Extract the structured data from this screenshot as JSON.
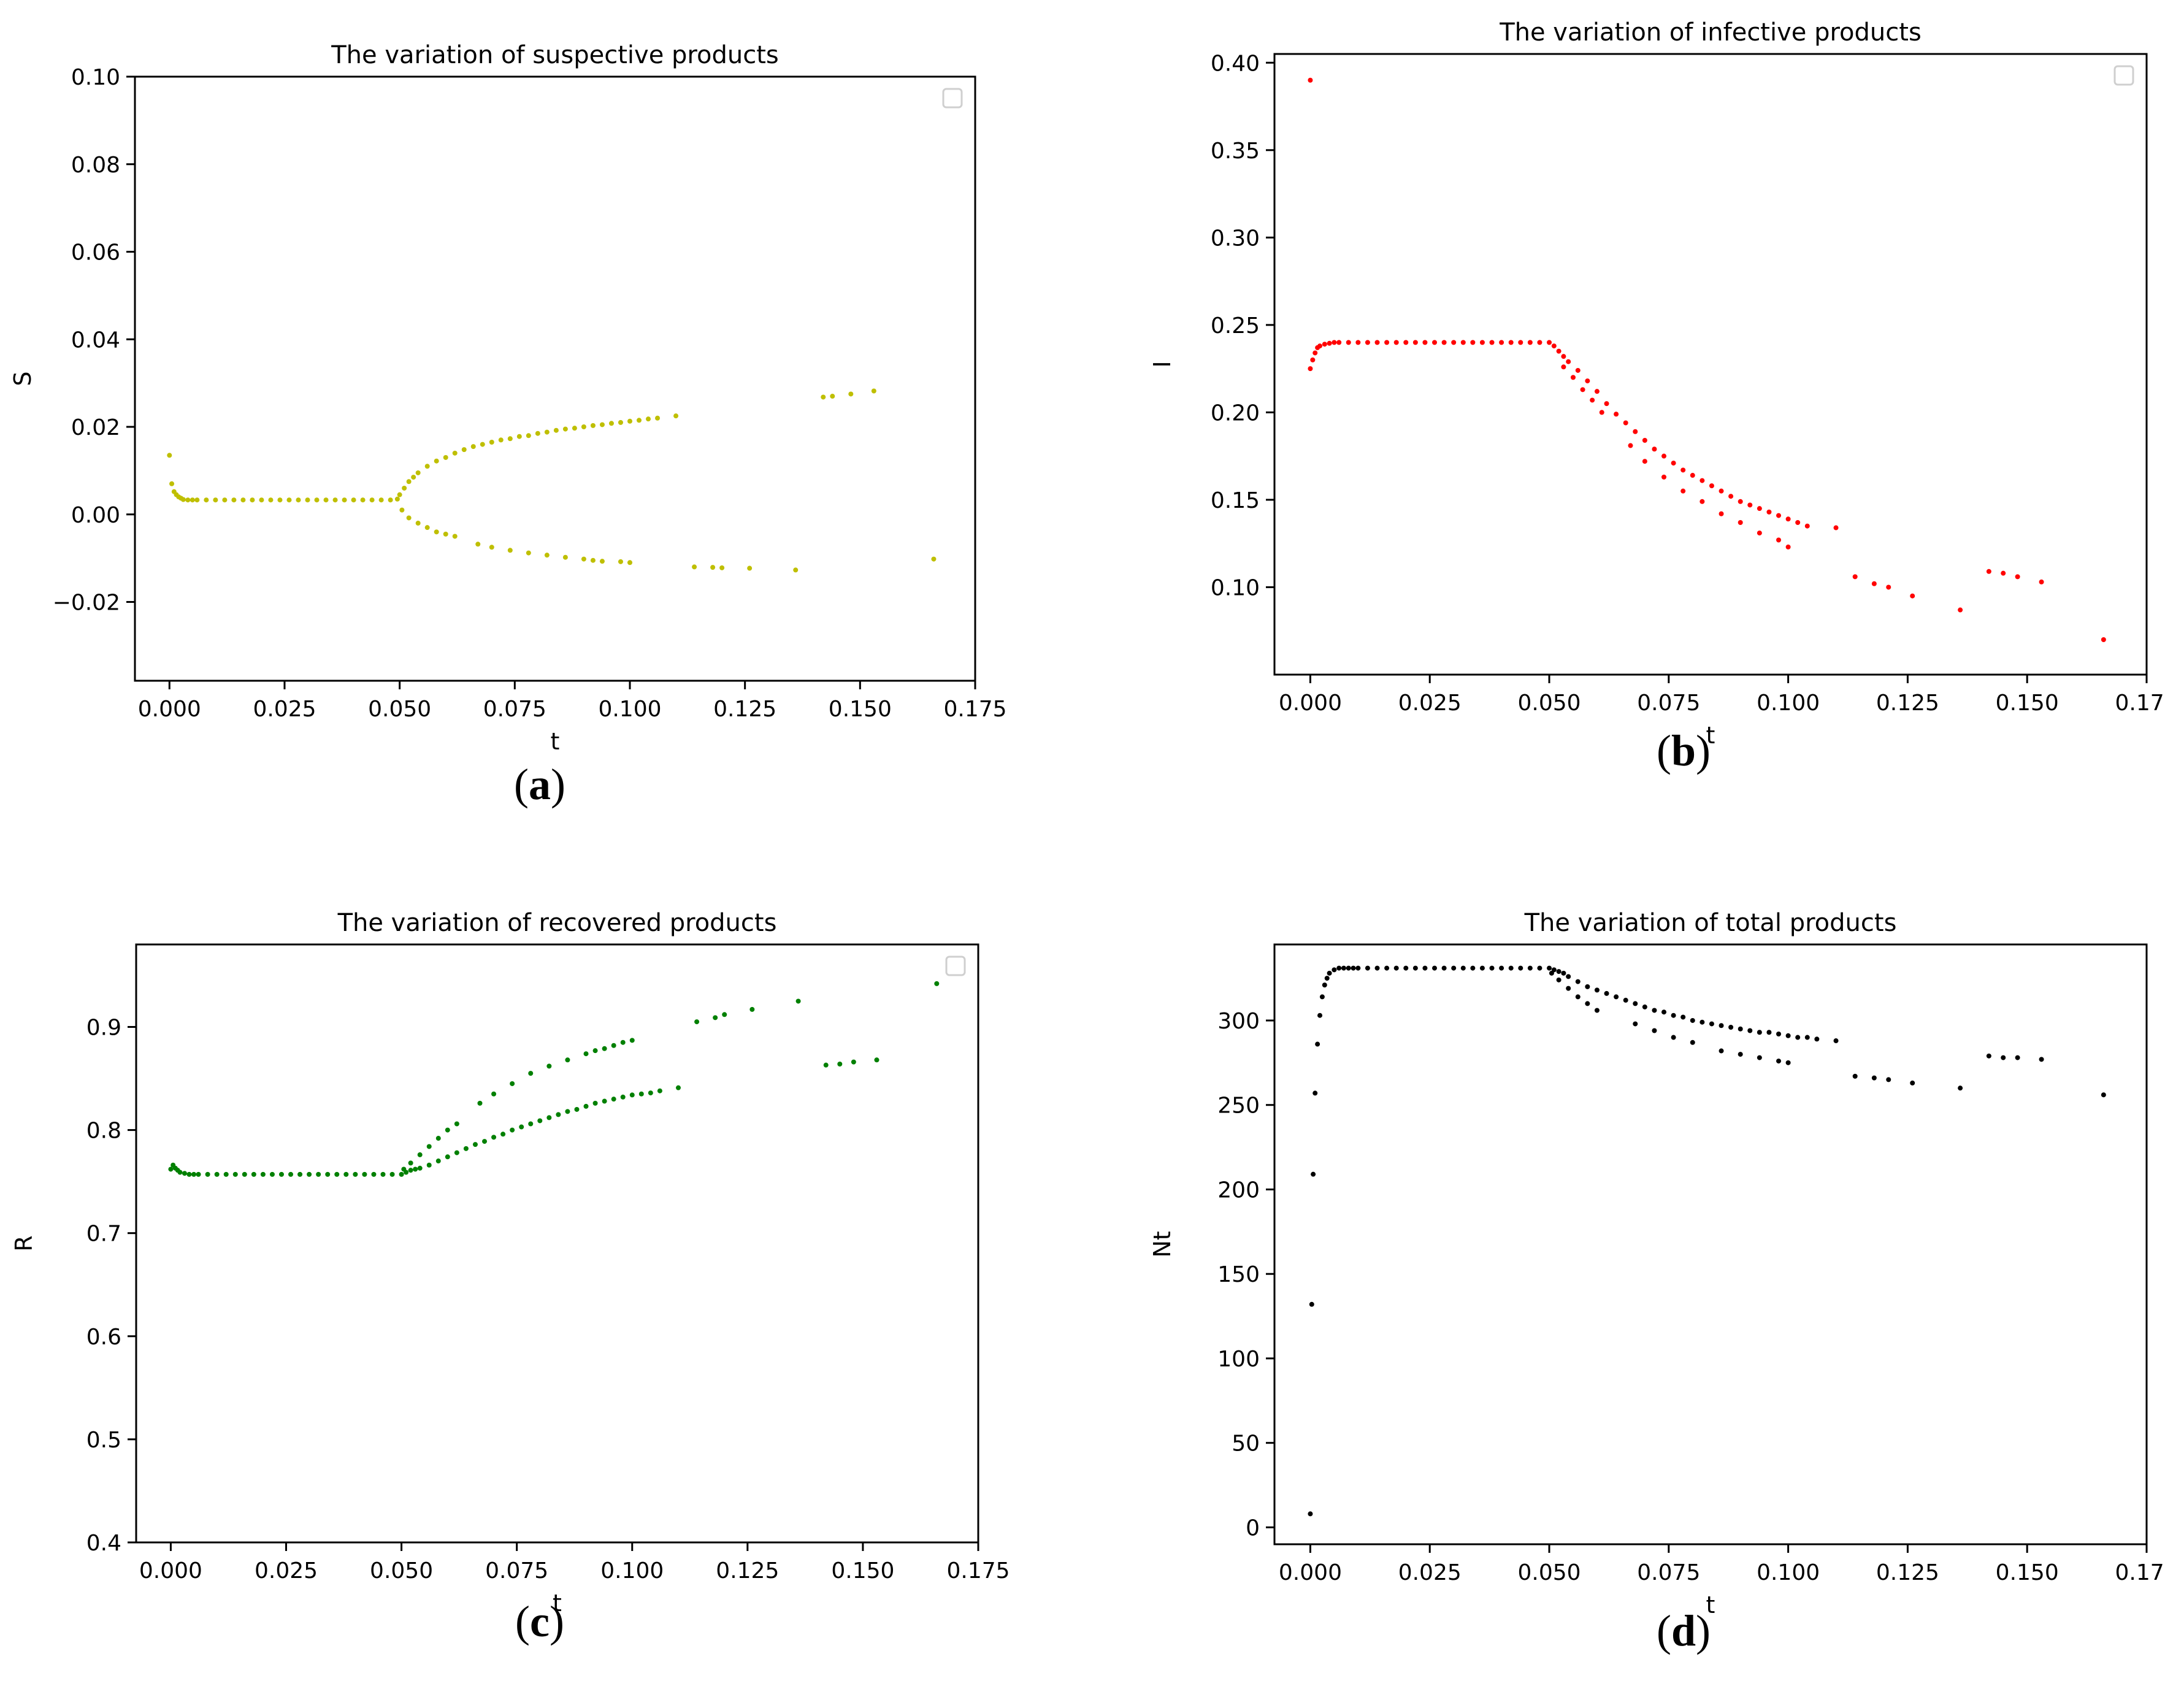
{
  "chart_data": [
    {
      "type": "scatter",
      "title": "The variation of suspective products",
      "xlabel": "t",
      "ylabel": "S",
      "caption": "a",
      "color": "#bfbf00",
      "xlim": [
        -0.0075,
        0.175
      ],
      "ylim": [
        -0.038,
        0.1
      ],
      "xticks": [
        "0.000",
        "0.025",
        "0.050",
        "0.075",
        "0.100",
        "0.125",
        "0.150",
        "0.175"
      ],
      "yticks": [
        "−0.02",
        "0.00",
        "0.02",
        "0.04",
        "0.06",
        "0.08",
        "0.10"
      ],
      "legend": "empty box, top-right",
      "series": [
        {
          "x": [
            0.0,
            0.0005,
            0.001,
            0.0015,
            0.002,
            0.0025,
            0.003,
            0.004,
            0.005,
            0.006,
            0.008,
            0.01,
            0.012,
            0.014,
            0.016,
            0.018,
            0.02,
            0.022,
            0.024,
            0.026,
            0.028,
            0.03,
            0.032,
            0.034,
            0.036,
            0.038,
            0.04,
            0.042,
            0.044,
            0.046,
            0.048,
            0.0495,
            0.05,
            0.051,
            0.052,
            0.053,
            0.054,
            0.056,
            0.058,
            0.06,
            0.062,
            0.064,
            0.066,
            0.068,
            0.07,
            0.072,
            0.074,
            0.076,
            0.078,
            0.08,
            0.082,
            0.084,
            0.086,
            0.088,
            0.09,
            0.092,
            0.094,
            0.096,
            0.098,
            0.1,
            0.102,
            0.104,
            0.106,
            0.11,
            0.142,
            0.144,
            0.148,
            0.153
          ],
          "y": [
            0.0135,
            0.007,
            0.0052,
            0.0045,
            0.004,
            0.0037,
            0.0034,
            0.0033,
            0.0033,
            0.0033,
            0.0033,
            0.0033,
            0.0033,
            0.0033,
            0.0033,
            0.0033,
            0.0033,
            0.0033,
            0.0033,
            0.0033,
            0.0033,
            0.0033,
            0.0033,
            0.0033,
            0.0033,
            0.0033,
            0.0033,
            0.0033,
            0.0033,
            0.0033,
            0.0033,
            0.0035,
            0.0045,
            0.006,
            0.0075,
            0.0085,
            0.0095,
            0.011,
            0.0122,
            0.013,
            0.014,
            0.0148,
            0.0155,
            0.016,
            0.0165,
            0.017,
            0.0173,
            0.0178,
            0.018,
            0.0185,
            0.0188,
            0.0192,
            0.0195,
            0.0197,
            0.02,
            0.0203,
            0.0205,
            0.0208,
            0.021,
            0.0213,
            0.0215,
            0.0218,
            0.022,
            0.0225,
            0.0268,
            0.027,
            0.0275,
            0.0282
          ]
        },
        {
          "x": [
            0.0505,
            0.052,
            0.054,
            0.056,
            0.058,
            0.06,
            0.062,
            0.067,
            0.07,
            0.074,
            0.078,
            0.082,
            0.086,
            0.09,
            0.092,
            0.094,
            0.098,
            0.1,
            0.114,
            0.118,
            0.12,
            0.126,
            0.136,
            0.166
          ],
          "y": [
            0.001,
            -0.0008,
            -0.002,
            -0.003,
            -0.004,
            -0.0045,
            -0.005,
            -0.0068,
            -0.0075,
            -0.0082,
            -0.0088,
            -0.0093,
            -0.0098,
            -0.0102,
            -0.0105,
            -0.0107,
            -0.0108,
            -0.011,
            -0.012,
            -0.0121,
            -0.0122,
            -0.0123,
            -0.0127,
            -0.0102
          ]
        }
      ]
    },
    {
      "type": "scatter",
      "title": "The variation of infective products",
      "xlabel": "t",
      "ylabel": "I",
      "caption": "b",
      "color": "#ff0000",
      "xlim": [
        -0.0075,
        0.175
      ],
      "ylim": [
        0.05,
        0.405
      ],
      "xticks": [
        "0.000",
        "0.025",
        "0.050",
        "0.075",
        "0.100",
        "0.125",
        "0.150",
        "0.175"
      ],
      "yticks": [
        "0.10",
        "0.15",
        "0.20",
        "0.25",
        "0.30",
        "0.35",
        "0.40"
      ],
      "legend": "empty box, top-right",
      "series": [
        {
          "x": [
            0.0,
            0.0,
            0.0005,
            0.001,
            0.0015,
            0.002,
            0.003,
            0.004,
            0.005,
            0.006,
            0.008,
            0.01,
            0.012,
            0.014,
            0.016,
            0.018,
            0.02,
            0.022,
            0.024,
            0.026,
            0.028,
            0.03,
            0.032,
            0.034,
            0.036,
            0.038,
            0.04,
            0.042,
            0.044,
            0.046,
            0.048,
            0.05,
            0.051,
            0.052,
            0.053,
            0.054,
            0.056,
            0.058,
            0.06,
            0.062,
            0.064,
            0.066,
            0.068,
            0.07,
            0.072,
            0.074,
            0.076,
            0.078,
            0.08,
            0.082,
            0.084,
            0.086,
            0.088,
            0.09,
            0.092,
            0.094,
            0.096,
            0.098,
            0.1,
            0.102,
            0.104,
            0.11,
            0.142,
            0.145,
            0.148,
            0.153
          ],
          "y": [
            0.39,
            0.225,
            0.23,
            0.234,
            0.237,
            0.238,
            0.239,
            0.2395,
            0.24,
            0.24,
            0.24,
            0.24,
            0.24,
            0.24,
            0.24,
            0.24,
            0.24,
            0.24,
            0.24,
            0.24,
            0.24,
            0.24,
            0.24,
            0.24,
            0.24,
            0.24,
            0.24,
            0.24,
            0.24,
            0.24,
            0.24,
            0.24,
            0.238,
            0.235,
            0.232,
            0.229,
            0.224,
            0.218,
            0.212,
            0.205,
            0.199,
            0.194,
            0.189,
            0.184,
            0.179,
            0.175,
            0.171,
            0.167,
            0.164,
            0.161,
            0.158,
            0.155,
            0.152,
            0.149,
            0.147,
            0.145,
            0.143,
            0.141,
            0.139,
            0.137,
            0.135,
            0.134,
            0.109,
            0.108,
            0.106,
            0.103
          ]
        },
        {
          "x": [
            0.053,
            0.055,
            0.057,
            0.059,
            0.061,
            0.067,
            0.07,
            0.074,
            0.078,
            0.082,
            0.086,
            0.09,
            0.094,
            0.098,
            0.1,
            0.114,
            0.118,
            0.121,
            0.126,
            0.136,
            0.166
          ],
          "y": [
            0.226,
            0.22,
            0.213,
            0.207,
            0.2,
            0.181,
            0.172,
            0.163,
            0.155,
            0.149,
            0.142,
            0.137,
            0.131,
            0.127,
            0.123,
            0.106,
            0.102,
            0.1,
            0.095,
            0.087,
            0.07
          ]
        }
      ]
    },
    {
      "type": "scatter",
      "title": "The variation of recovered products",
      "xlabel": "t",
      "ylabel": "R",
      "caption": "c",
      "color": "#008000",
      "xlim": [
        -0.0075,
        0.175
      ],
      "ylim": [
        0.4,
        0.98
      ],
      "xticks": [
        "0.000",
        "0.025",
        "0.050",
        "0.075",
        "0.100",
        "0.125",
        "0.150",
        "0.175"
      ],
      "yticks": [
        "0.4",
        "0.5",
        "0.6",
        "0.7",
        "0.8",
        "0.9"
      ],
      "legend": "empty box, top-right",
      "series": [
        {
          "x": [
            0.0,
            0.0005,
            0.001,
            0.0015,
            0.002,
            0.003,
            0.004,
            0.005,
            0.006,
            0.008,
            0.01,
            0.012,
            0.014,
            0.016,
            0.018,
            0.02,
            0.022,
            0.024,
            0.026,
            0.028,
            0.03,
            0.032,
            0.034,
            0.036,
            0.038,
            0.04,
            0.042,
            0.044,
            0.046,
            0.048,
            0.05,
            0.051,
            0.052,
            0.053,
            0.054,
            0.056,
            0.058,
            0.06,
            0.062,
            0.064,
            0.066,
            0.068,
            0.07,
            0.072,
            0.074,
            0.076,
            0.078,
            0.08,
            0.082,
            0.084,
            0.086,
            0.088,
            0.09,
            0.092,
            0.094,
            0.096,
            0.098,
            0.1,
            0.102,
            0.104,
            0.106,
            0.11,
            0.142,
            0.145,
            0.148,
            0.153
          ],
          "y": [
            0.762,
            0.766,
            0.763,
            0.761,
            0.759,
            0.758,
            0.757,
            0.757,
            0.757,
            0.757,
            0.757,
            0.757,
            0.757,
            0.757,
            0.757,
            0.757,
            0.757,
            0.757,
            0.757,
            0.757,
            0.757,
            0.757,
            0.757,
            0.757,
            0.757,
            0.757,
            0.757,
            0.757,
            0.757,
            0.757,
            0.757,
            0.759,
            0.761,
            0.762,
            0.763,
            0.766,
            0.77,
            0.774,
            0.778,
            0.782,
            0.786,
            0.789,
            0.793,
            0.796,
            0.8,
            0.803,
            0.806,
            0.809,
            0.812,
            0.815,
            0.818,
            0.82,
            0.823,
            0.826,
            0.828,
            0.83,
            0.832,
            0.834,
            0.835,
            0.836,
            0.838,
            0.841,
            0.863,
            0.864,
            0.866,
            0.868
          ]
        },
        {
          "x": [
            0.0505,
            0.052,
            0.054,
            0.056,
            0.058,
            0.06,
            0.062,
            0.067,
            0.07,
            0.074,
            0.078,
            0.082,
            0.086,
            0.09,
            0.092,
            0.094,
            0.096,
            0.098,
            0.1,
            0.114,
            0.118,
            0.12,
            0.126,
            0.136,
            0.166
          ],
          "y": [
            0.762,
            0.768,
            0.776,
            0.784,
            0.792,
            0.8,
            0.806,
            0.826,
            0.835,
            0.845,
            0.855,
            0.862,
            0.868,
            0.874,
            0.877,
            0.879,
            0.882,
            0.885,
            0.887,
            0.905,
            0.909,
            0.912,
            0.917,
            0.925,
            0.942
          ]
        }
      ]
    },
    {
      "type": "scatter",
      "title": "The variation of total products",
      "xlabel": "t",
      "ylabel": "Nt",
      "caption": "d",
      "color": "#000000",
      "xlim": [
        -0.0075,
        0.175
      ],
      "ylim": [
        -10,
        345
      ],
      "xticks": [
        "0.000",
        "0.025",
        "0.050",
        "0.075",
        "0.100",
        "0.125",
        "0.150",
        "0.175"
      ],
      "yticks": [
        "0",
        "50",
        "100",
        "150",
        "200",
        "250",
        "300"
      ],
      "series": [
        {
          "x": [
            0.0,
            0.0003,
            0.0006,
            0.001,
            0.0015,
            0.002,
            0.0025,
            0.003,
            0.0035,
            0.004,
            0.005,
            0.006,
            0.007,
            0.008,
            0.009,
            0.01,
            0.012,
            0.014,
            0.016,
            0.018,
            0.02,
            0.022,
            0.024,
            0.026,
            0.028,
            0.03,
            0.032,
            0.034,
            0.036,
            0.038,
            0.04,
            0.042,
            0.044,
            0.046,
            0.048,
            0.05,
            0.051,
            0.052,
            0.053,
            0.054,
            0.056,
            0.058,
            0.06,
            0.062,
            0.064,
            0.066,
            0.068,
            0.07,
            0.072,
            0.074,
            0.076,
            0.078,
            0.08,
            0.082,
            0.084,
            0.086,
            0.088,
            0.09,
            0.092,
            0.094,
            0.096,
            0.098,
            0.1,
            0.102,
            0.104,
            0.106,
            0.11,
            0.142,
            0.145,
            0.148,
            0.153
          ],
          "y": [
            8,
            132,
            209,
            257,
            286,
            303,
            314,
            321,
            325,
            328,
            330,
            331,
            331,
            331,
            331,
            331,
            331,
            331,
            331,
            331,
            331,
            331,
            331,
            331,
            331,
            331,
            331,
            331,
            331,
            331,
            331,
            331,
            331,
            331,
            331,
            331,
            330,
            329,
            328,
            326,
            323,
            320,
            318,
            316,
            314,
            312,
            310,
            308,
            306,
            305,
            303,
            302,
            300,
            299,
            298,
            297,
            296,
            295,
            294,
            293,
            293,
            292,
            291,
            290,
            290,
            289,
            288,
            279,
            278,
            278,
            277
          ]
        },
        {
          "x": [
            0.0505,
            0.052,
            0.054,
            0.056,
            0.058,
            0.06,
            0.068,
            0.072,
            0.076,
            0.08,
            0.086,
            0.09,
            0.094,
            0.098,
            0.1,
            0.114,
            0.118,
            0.121,
            0.126,
            0.136,
            0.166
          ],
          "y": [
            328,
            324,
            319,
            314,
            310,
            306,
            298,
            294,
            290,
            287,
            282,
            280,
            278,
            276,
            275,
            267,
            266,
            265,
            263,
            260,
            256
          ]
        }
      ]
    }
  ]
}
